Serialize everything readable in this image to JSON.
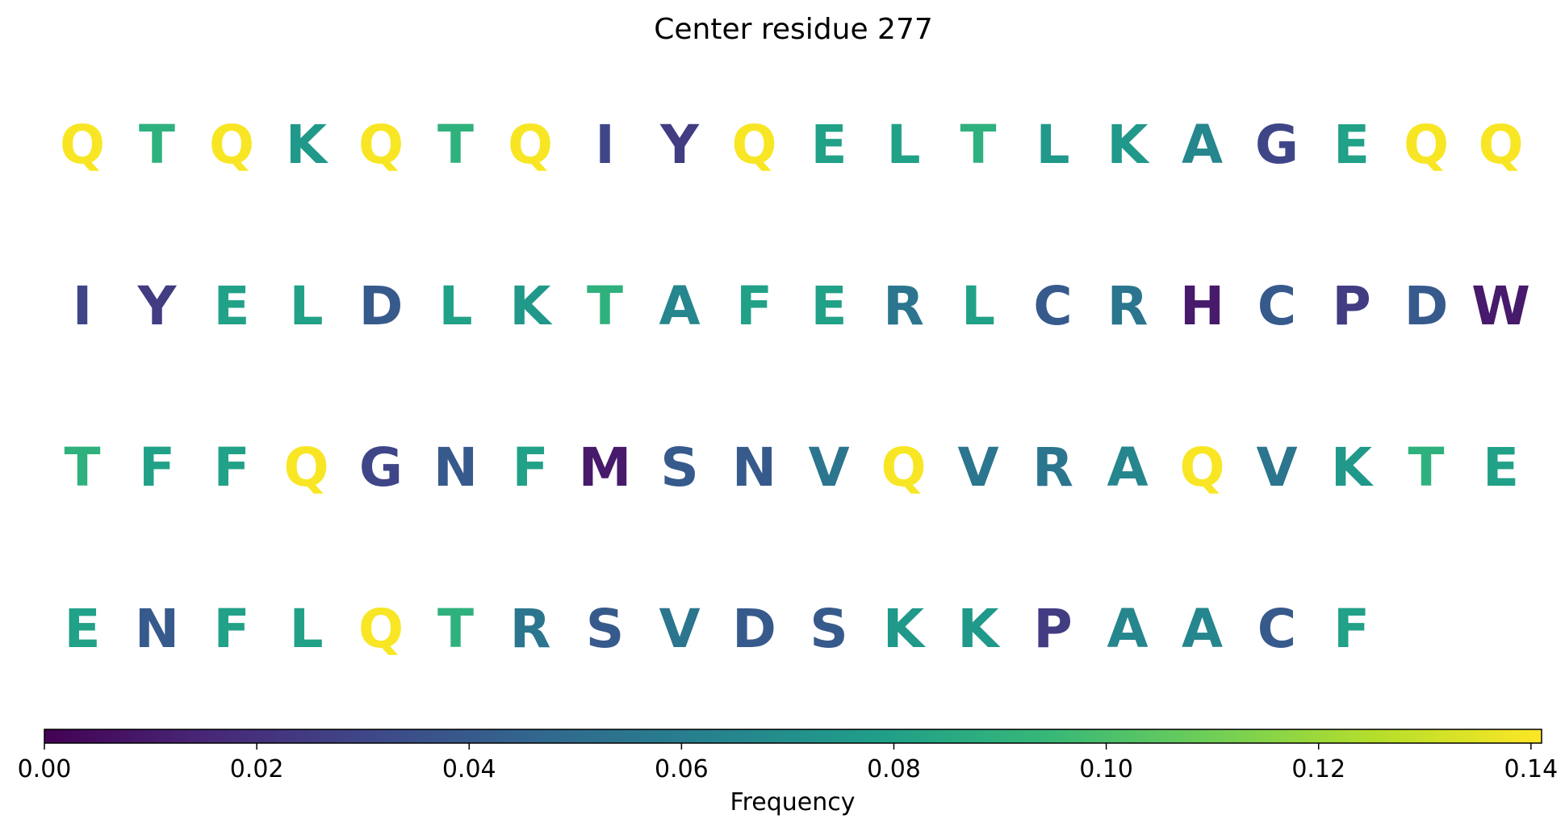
{
  "chart_data": {
    "type": "heatmap",
    "title": "Center residue 277",
    "rows": [
      {
        "residues": [
          "Q",
          "T",
          "Q",
          "K",
          "Q",
          "T",
          "Q",
          "I",
          "Y",
          "Q",
          "E",
          "L",
          "T",
          "L",
          "K",
          "A",
          "G",
          "E",
          "Q",
          "Q"
        ],
        "values": [
          0.14,
          0.09,
          0.14,
          0.075,
          0.14,
          0.09,
          0.14,
          0.03,
          0.025,
          0.14,
          0.08,
          0.08,
          0.09,
          0.075,
          0.075,
          0.065,
          0.03,
          0.08,
          0.14,
          0.14
        ]
      },
      {
        "residues": [
          "I",
          "Y",
          "E",
          "L",
          "D",
          "L",
          "K",
          "T",
          "A",
          "F",
          "E",
          "R",
          "L",
          "C",
          "R",
          "H",
          "C",
          "P",
          "D",
          "W"
        ],
        "values": [
          0.03,
          0.025,
          0.08,
          0.08,
          0.04,
          0.08,
          0.075,
          0.09,
          0.065,
          0.08,
          0.08,
          0.055,
          0.08,
          0.04,
          0.055,
          0.01,
          0.04,
          0.025,
          0.04,
          0.01
        ]
      },
      {
        "residues": [
          "T",
          "F",
          "F",
          "Q",
          "G",
          "N",
          "F",
          "M",
          "S",
          "N",
          "V",
          "Q",
          "V",
          "R",
          "A",
          "Q",
          "V",
          "K",
          "T",
          "E"
        ],
        "values": [
          0.09,
          0.08,
          0.08,
          0.14,
          0.03,
          0.04,
          0.08,
          0.01,
          0.04,
          0.04,
          0.055,
          0.14,
          0.055,
          0.055,
          0.065,
          0.14,
          0.055,
          0.075,
          0.09,
          0.08
        ]
      },
      {
        "residues": [
          "E",
          "N",
          "F",
          "L",
          "Q",
          "T",
          "R",
          "S",
          "V",
          "D",
          "S",
          "K",
          "K",
          "P",
          "A",
          "A",
          "C",
          "F"
        ],
        "values": [
          0.08,
          0.04,
          0.08,
          0.08,
          0.14,
          0.09,
          0.055,
          0.04,
          0.055,
          0.04,
          0.04,
          0.075,
          0.075,
          0.025,
          0.065,
          0.065,
          0.04,
          0.08
        ]
      }
    ],
    "colorbar": {
      "colormap": "viridis",
      "label": "Frequency",
      "range": [
        0,
        0.141
      ],
      "ticks": [
        0.0,
        0.02,
        0.04,
        0.06,
        0.08,
        0.1,
        0.12,
        0.14
      ],
      "tick_labels": [
        "0.00",
        "0.02",
        "0.04",
        "0.06",
        "0.08",
        "0.10",
        "0.12",
        "0.14"
      ]
    }
  }
}
